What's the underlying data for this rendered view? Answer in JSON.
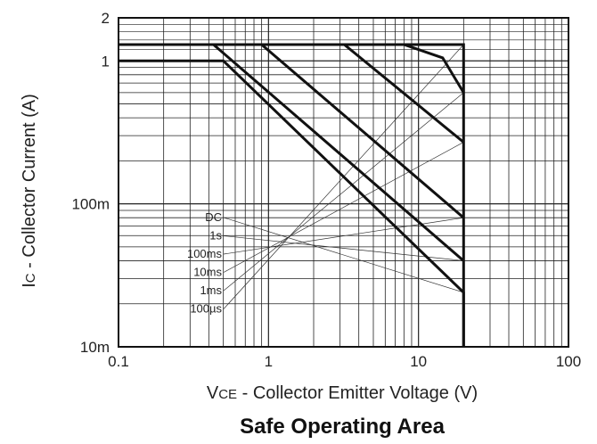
{
  "chart_data": {
    "type": "line",
    "title": "Safe Operating Area",
    "xlabel_main": "V",
    "xlabel_sub": "CE",
    "xlabel_rest": " - Collector Emitter Voltage (V)",
    "ylabel_main": "I",
    "ylabel_sub": "C",
    "ylabel_rest": " - Collector Current (A)",
    "x_scale": "log",
    "y_scale": "log",
    "xlim": [
      0.1,
      100
    ],
    "ylim": [
      0.01,
      2
    ],
    "x_ticks": [
      {
        "value": 0.1,
        "label": "0.1"
      },
      {
        "value": 1,
        "label": "1"
      },
      {
        "value": 10,
        "label": "10"
      },
      {
        "value": 100,
        "label": "100"
      }
    ],
    "y_ticks": [
      {
        "value": 0.01,
        "label": "10m"
      },
      {
        "value": 0.1,
        "label": "100m"
      },
      {
        "value": 1,
        "label": "1"
      },
      {
        "value": 2,
        "label": "2"
      }
    ],
    "grid": true,
    "legend_position": "lower-left",
    "legend_entries": [
      "DC",
      "1s",
      "100ms",
      "10ms",
      "1ms",
      "100µs"
    ],
    "series": [
      {
        "name": "DC",
        "points": [
          [
            0.1,
            1.0
          ],
          [
            0.5,
            1.0
          ],
          [
            20,
            0.024
          ],
          [
            20,
            0.01
          ]
        ]
      },
      {
        "name": "1s",
        "points": [
          [
            0.1,
            1.3
          ],
          [
            0.43,
            1.3
          ],
          [
            20,
            0.04
          ]
        ]
      },
      {
        "name": "100ms",
        "points": [
          [
            0.43,
            1.3
          ],
          [
            0.9,
            1.3
          ],
          [
            20,
            0.08
          ]
        ]
      },
      {
        "name": "10ms",
        "points": [
          [
            0.9,
            1.3
          ],
          [
            3.2,
            1.3
          ],
          [
            20,
            0.27
          ]
        ]
      },
      {
        "name": "1ms",
        "points": [
          [
            3.2,
            1.3
          ],
          [
            8.0,
            1.3
          ],
          [
            14.5,
            1.05
          ],
          [
            20,
            0.6
          ]
        ]
      },
      {
        "name": "100µs",
        "points": [
          [
            8.0,
            1.3
          ],
          [
            20,
            1.3
          ],
          [
            20,
            0.01
          ]
        ]
      }
    ]
  }
}
